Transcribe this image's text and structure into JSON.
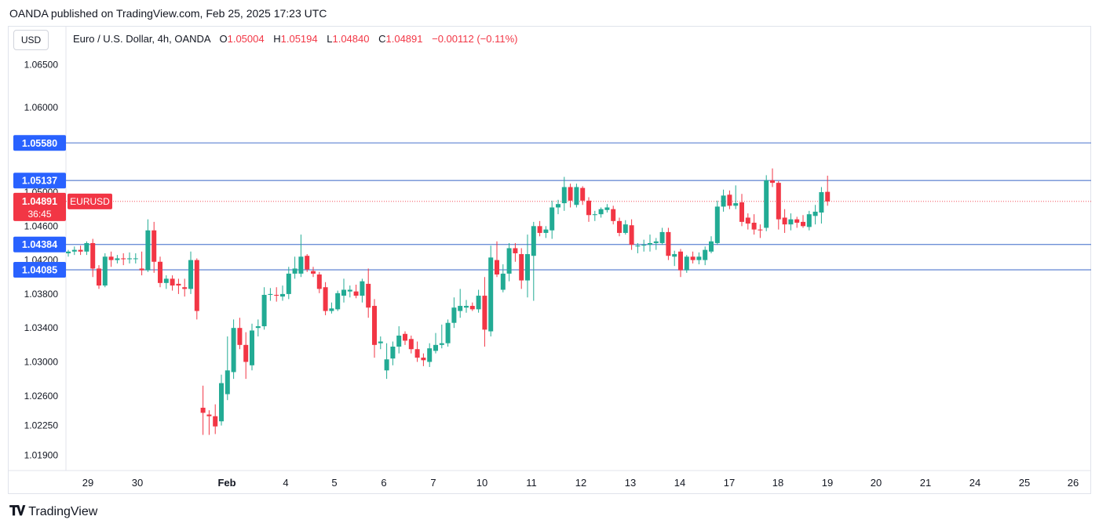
{
  "header": {
    "text": "OANDA published on TradingView.com, Feb 25, 2025 17:23 UTC"
  },
  "currency_button": "USD",
  "legend": {
    "name": "Euro / U.S. Dollar, 4h, OANDA",
    "o_label": "O",
    "o_value": "1.05004",
    "h_label": "H",
    "h_value": "1.05194",
    "l_label": "L",
    "l_value": "1.04840",
    "c_label": "C",
    "c_value": "1.04891",
    "change": "−0.00112 (−0.11%)"
  },
  "footer": {
    "brand": "TradingView",
    "logo_icon": "tradingview-logo-icon"
  },
  "colors": {
    "up": "#22ab94",
    "down": "#f23645",
    "level": "#2962ff",
    "hline": "#6e8fd6",
    "price": "#f23645"
  },
  "chart_data": {
    "type": "candlestick",
    "symbol": "EURUSD",
    "timeframe": "4h",
    "ylim": [
      1.0172,
      1.0695
    ],
    "y_ticks": [
      "1.06500",
      "1.06000",
      "1.05580",
      "1.05137",
      "1.05000",
      "1.04600",
      "1.04384",
      "1.04200",
      "1.04085",
      "1.03800",
      "1.03400",
      "1.03000",
      "1.02600",
      "1.02250",
      "1.01900"
    ],
    "x_ticks": [
      "29",
      "30",
      "Feb",
      "4",
      "5",
      "6",
      "7",
      "10",
      "11",
      "12",
      "13",
      "14",
      "17",
      "18",
      "19",
      "20",
      "21",
      "24",
      "25",
      "26"
    ],
    "levels": [
      {
        "label": "1.05580",
        "value": 1.0558
      },
      {
        "label": "1.05137",
        "value": 1.05137
      },
      {
        "label": "1.04384",
        "value": 1.04384
      },
      {
        "label": "1.04085",
        "value": 1.04085
      }
    ],
    "last_price": {
      "label": "1.04891",
      "value": 1.04891,
      "countdown": "36:45",
      "symbol_label": "EURUSD"
    },
    "candles": [
      [
        1.0428,
        1.0432,
        1.0424,
        1.043
      ],
      [
        1.043,
        1.0436,
        1.0426,
        1.0432
      ],
      [
        1.0432,
        1.0437,
        1.0426,
        1.043
      ],
      [
        1.043,
        1.0442,
        1.0426,
        1.044
      ],
      [
        1.044,
        1.0445,
        1.04,
        1.041
      ],
      [
        1.041,
        1.0414,
        1.0386,
        1.039
      ],
      [
        1.039,
        1.0428,
        1.0388,
        1.0424
      ],
      [
        1.0424,
        1.043,
        1.0412,
        1.042
      ],
      [
        1.042,
        1.0426,
        1.0416,
        1.0422
      ],
      [
        1.0422,
        1.0428,
        1.0414,
        1.0421
      ],
      [
        1.0421,
        1.0429,
        1.0416,
        1.0422
      ],
      [
        1.0422,
        1.0428,
        1.0416,
        1.0422
      ],
      [
        1.041,
        1.043,
        1.0402,
        1.0408
      ],
      [
        1.0408,
        1.0468,
        1.0406,
        1.0455
      ],
      [
        1.0455,
        1.0465,
        1.0405,
        1.0418
      ],
      [
        1.0418,
        1.0424,
        1.0388,
        1.0393
      ],
      [
        1.0393,
        1.0402,
        1.0386,
        1.0398
      ],
      [
        1.0398,
        1.0402,
        1.0384,
        1.039
      ],
      [
        1.0392,
        1.0398,
        1.038,
        1.039
      ],
      [
        1.0388,
        1.0398,
        1.0377,
        1.0386
      ],
      [
        1.0386,
        1.043,
        1.038,
        1.042
      ],
      [
        1.042,
        1.0422,
        1.035,
        1.036
      ],
      [
        1.0246,
        1.0272,
        1.0214,
        1.024
      ],
      [
        1.0238,
        1.0243,
        1.0214,
        1.0236
      ],
      [
        1.0236,
        1.025,
        1.0215,
        1.0224
      ],
      [
        1.023,
        1.0285,
        1.0225,
        1.0275
      ],
      [
        1.0262,
        1.033,
        1.0255,
        1.029
      ],
      [
        1.0288,
        1.035,
        1.028,
        1.034
      ],
      [
        1.034,
        1.0352,
        1.0315,
        1.032
      ],
      [
        1.032,
        1.0335,
        1.028,
        1.03
      ],
      [
        1.0296,
        1.0345,
        1.029,
        1.0337
      ],
      [
        1.034,
        1.035,
        1.033,
        1.0342
      ],
      [
        1.0342,
        1.0388,
        1.0338,
        1.0379
      ],
      [
        1.0379,
        1.0387,
        1.0372,
        1.038
      ],
      [
        1.0379,
        1.0388,
        1.0371,
        1.0378
      ],
      [
        1.0377,
        1.039,
        1.0372,
        1.038
      ],
      [
        1.038,
        1.0412,
        1.0374,
        1.0404
      ],
      [
        1.0404,
        1.0424,
        1.0398,
        1.041
      ],
      [
        1.0404,
        1.045,
        1.04,
        1.0424
      ],
      [
        1.0425,
        1.0427,
        1.0406,
        1.0409
      ],
      [
        1.0407,
        1.0412,
        1.04,
        1.0404
      ],
      [
        1.0403,
        1.0406,
        1.0381,
        1.0386
      ],
      [
        1.0388,
        1.0394,
        1.0355,
        1.036
      ],
      [
        1.036,
        1.037,
        1.0357,
        1.0363
      ],
      [
        1.0362,
        1.0384,
        1.036,
        1.0381
      ],
      [
        1.0378,
        1.0398,
        1.037,
        1.0385
      ],
      [
        1.0383,
        1.039,
        1.0376,
        1.0385
      ],
      [
        1.0383,
        1.0391,
        1.0375,
        1.0378
      ],
      [
        1.0378,
        1.0398,
        1.037,
        1.0395
      ],
      [
        1.0392,
        1.041,
        1.0352,
        1.0364
      ],
      [
        1.0366,
        1.0374,
        1.0305,
        1.032
      ],
      [
        1.0322,
        1.033,
        1.0315,
        1.0324
      ],
      [
        1.029,
        1.0322,
        1.028,
        1.0303
      ],
      [
        1.0304,
        1.0324,
        1.0296,
        1.0318
      ],
      [
        1.0318,
        1.0342,
        1.031,
        1.0331
      ],
      [
        1.0333,
        1.0336,
        1.032,
        1.0325
      ],
      [
        1.0327,
        1.0331,
        1.031,
        1.0315
      ],
      [
        1.0315,
        1.0324,
        1.03,
        1.0305
      ],
      [
        1.0305,
        1.031,
        1.0295,
        1.0302
      ],
      [
        1.03,
        1.0322,
        1.0294,
        1.0316
      ],
      [
        1.0313,
        1.0334,
        1.031,
        1.032
      ],
      [
        1.032,
        1.0344,
        1.0316,
        1.0322
      ],
      [
        1.0322,
        1.035,
        1.0318,
        1.0346
      ],
      [
        1.0346,
        1.0376,
        1.034,
        1.0364
      ],
      [
        1.036,
        1.0386,
        1.0352,
        1.0366
      ],
      [
        1.0364,
        1.0373,
        1.0358,
        1.0366
      ],
      [
        1.0366,
        1.037,
        1.036,
        1.0362
      ],
      [
        1.0362,
        1.0385,
        1.0358,
        1.0378
      ],
      [
        1.0378,
        1.04,
        1.0318,
        1.0338
      ],
      [
        1.0336,
        1.0437,
        1.033,
        1.0423
      ],
      [
        1.042,
        1.0442,
        1.04,
        1.0403
      ],
      [
        1.0385,
        1.0415,
        1.0382,
        1.0404
      ],
      [
        1.0404,
        1.044,
        1.0395,
        1.0434
      ],
      [
        1.0434,
        1.044,
        1.0418,
        1.0428
      ],
      [
        1.0427,
        1.0434,
        1.0386,
        1.0396
      ],
      [
        1.0396,
        1.045,
        1.0376,
        1.0427
      ],
      [
        1.0425,
        1.0465,
        1.0372,
        1.046
      ],
      [
        1.046,
        1.0466,
        1.0448,
        1.0452
      ],
      [
        1.0452,
        1.046,
        1.0446,
        1.0456
      ],
      [
        1.0455,
        1.049,
        1.0445,
        1.0482
      ],
      [
        1.0482,
        1.0491,
        1.0474,
        1.0486
      ],
      [
        1.0487,
        1.0518,
        1.0478,
        1.0506
      ],
      [
        1.0506,
        1.051,
        1.0482,
        1.049
      ],
      [
        1.0485,
        1.051,
        1.0482,
        1.0506
      ],
      [
        1.0505,
        1.0507,
        1.0485,
        1.049
      ],
      [
        1.049,
        1.0494,
        1.0465,
        1.0473
      ],
      [
        1.0473,
        1.0478,
        1.0466,
        1.0474
      ],
      [
        1.0474,
        1.0482,
        1.047,
        1.048
      ],
      [
        1.0479,
        1.0486,
        1.0476,
        1.0482
      ],
      [
        1.048,
        1.0484,
        1.0462,
        1.0466
      ],
      [
        1.0466,
        1.047,
        1.0448,
        1.0452
      ],
      [
        1.0452,
        1.0467,
        1.045,
        1.0462
      ],
      [
        1.0461,
        1.0468,
        1.0432,
        1.0438
      ],
      [
        1.0436,
        1.044,
        1.0428,
        1.0437
      ],
      [
        1.0437,
        1.0444,
        1.043,
        1.0438
      ],
      [
        1.0438,
        1.045,
        1.043,
        1.044
      ],
      [
        1.044,
        1.0446,
        1.0432,
        1.0442
      ],
      [
        1.044,
        1.0458,
        1.0438,
        1.0453
      ],
      [
        1.0453,
        1.0458,
        1.042,
        1.0425
      ],
      [
        1.0424,
        1.0431,
        1.0413,
        1.0427
      ],
      [
        1.043,
        1.0433,
        1.04,
        1.0408
      ],
      [
        1.0408,
        1.0426,
        1.0405,
        1.0424
      ],
      [
        1.0424,
        1.043,
        1.0416,
        1.042
      ],
      [
        1.042,
        1.0429,
        1.0415,
        1.0424
      ],
      [
        1.042,
        1.0436,
        1.0414,
        1.0432
      ],
      [
        1.043,
        1.0448,
        1.0428,
        1.0442
      ],
      [
        1.044,
        1.049,
        1.0438,
        1.0483
      ],
      [
        1.0483,
        1.0503,
        1.0477,
        1.0496
      ],
      [
        1.0497,
        1.0502,
        1.048,
        1.0484
      ],
      [
        1.0484,
        1.0508,
        1.048,
        1.0487
      ],
      [
        1.0488,
        1.0498,
        1.046,
        1.0465
      ],
      [
        1.047,
        1.0475,
        1.0456,
        1.0463
      ],
      [
        1.0464,
        1.0474,
        1.045,
        1.0456
      ],
      [
        1.0456,
        1.0462,
        1.0446,
        1.0455
      ],
      [
        1.0458,
        1.052,
        1.0454,
        1.0514
      ],
      [
        1.0514,
        1.0528,
        1.0506,
        1.0511
      ],
      [
        1.0511,
        1.0513,
        1.0456,
        1.0468
      ],
      [
        1.047,
        1.048,
        1.0452,
        1.0462
      ],
      [
        1.0462,
        1.0475,
        1.0455,
        1.0468
      ],
      [
        1.0468,
        1.0471,
        1.0458,
        1.0464
      ],
      [
        1.0465,
        1.0473,
        1.0458,
        1.046
      ],
      [
        1.0459,
        1.0478,
        1.0455,
        1.0474
      ],
      [
        1.0472,
        1.0485,
        1.0462,
        1.0477
      ],
      [
        1.0476,
        1.0506,
        1.0463,
        1.05
      ],
      [
        1.05004,
        1.05194,
        1.0484,
        1.04891
      ]
    ]
  }
}
